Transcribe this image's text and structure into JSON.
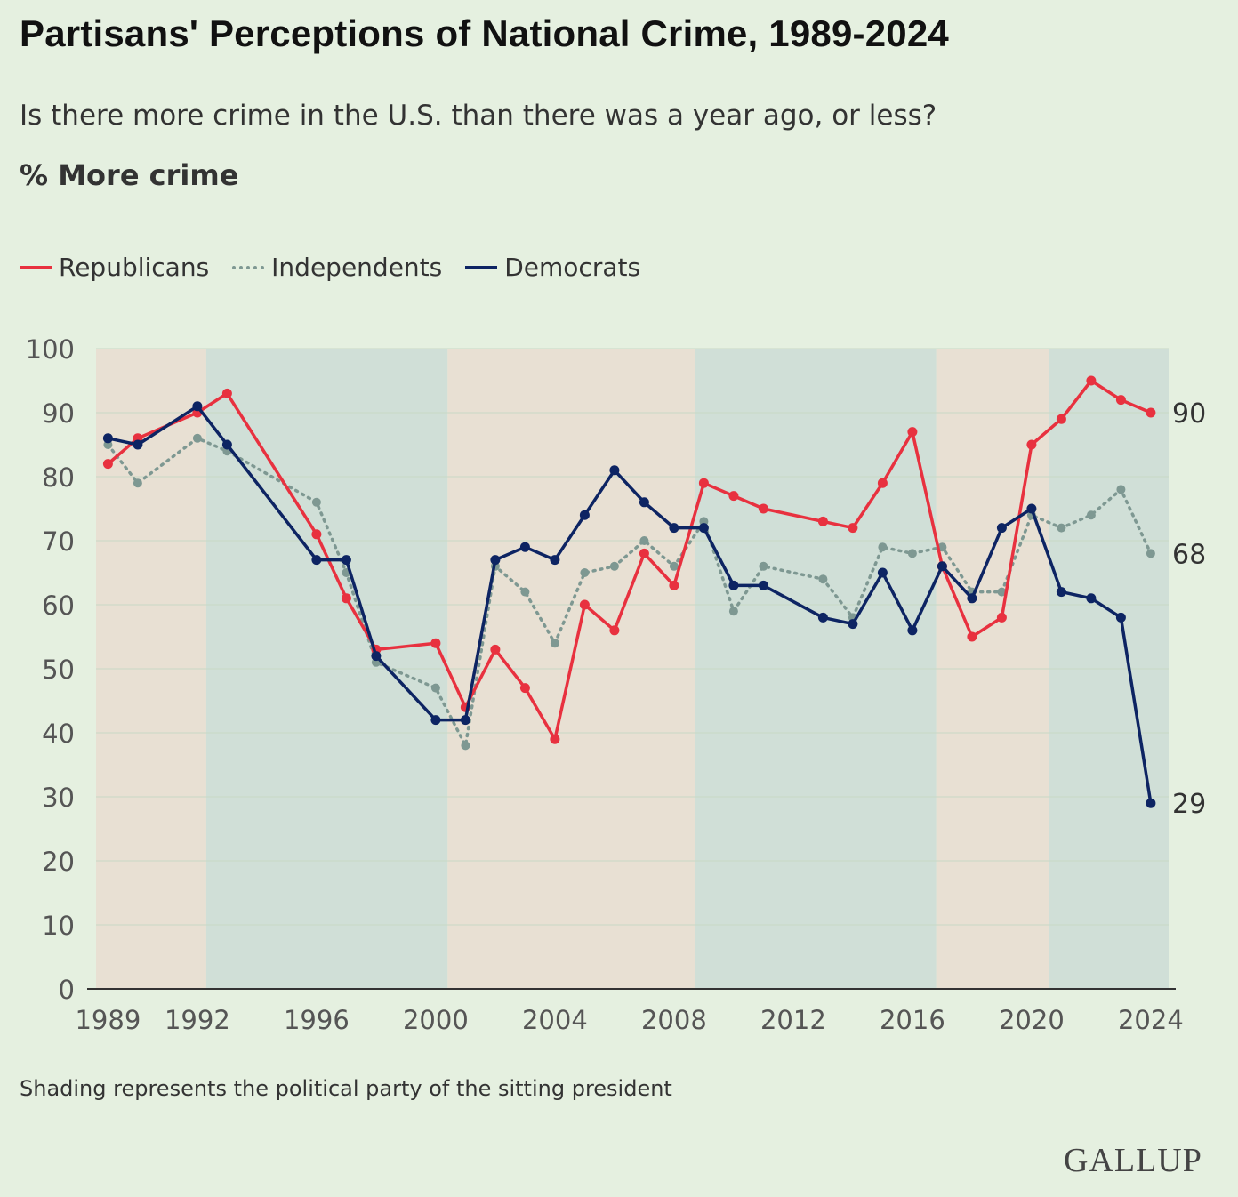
{
  "title": "Partisans' Perceptions of National Crime, 1989-2024",
  "subtitle": "Is there more crime in the U.S. than there was a year ago, or less?",
  "measure": "% More crime",
  "note": "Shading represents the political party of the sitting president",
  "logo": "GALLUP",
  "colors": {
    "republican": "#e8313f",
    "independent": "#7e9892",
    "democrat": "#0d2463",
    "rep_shade": "#e8e0d3",
    "dem_shade": "#d0dfd7",
    "background": "#e5f0e0"
  },
  "chart_data": {
    "type": "line",
    "ylim": [
      0,
      100
    ],
    "xlim": [
      1988.6,
      2024.6
    ],
    "yticks": [
      0,
      10,
      20,
      30,
      40,
      50,
      60,
      70,
      80,
      90,
      100
    ],
    "xticks": [
      1989,
      1992,
      1996,
      2000,
      2004,
      2008,
      2012,
      2016,
      2020,
      2024
    ],
    "legend": "top-left",
    "grid": true,
    "shading": [
      {
        "party": "Republican",
        "start": 1988.6,
        "end": 1992.3
      },
      {
        "party": "Democratic",
        "start": 1992.3,
        "end": 2000.4
      },
      {
        "party": "Republican",
        "start": 2000.4,
        "end": 2008.7
      },
      {
        "party": "Democratic",
        "start": 2008.7,
        "end": 2016.8
      },
      {
        "party": "Republican",
        "start": 2016.8,
        "end": 2020.6
      },
      {
        "party": "Democratic",
        "start": 2020.6,
        "end": 2024.6
      }
    ],
    "series": [
      {
        "name": "Republicans",
        "style": "solid",
        "end_label": "90",
        "x": [
          1989,
          1990,
          1992,
          1993,
          1996,
          1997,
          1998,
          2000,
          2001,
          2002,
          2003,
          2004,
          2005,
          2006,
          2007,
          2008,
          2009,
          2010,
          2011,
          2013,
          2014,
          2015,
          2016,
          2017,
          2018,
          2019,
          2020,
          2021,
          2022,
          2023,
          2024
        ],
        "values": [
          82,
          86,
          90,
          93,
          71,
          61,
          53,
          54,
          44,
          53,
          47,
          39,
          60,
          56,
          68,
          63,
          79,
          77,
          75,
          73,
          72,
          79,
          87,
          66,
          55,
          58,
          85,
          89,
          95,
          92,
          90
        ]
      },
      {
        "name": "Independents",
        "style": "dotted",
        "end_label": "68",
        "x": [
          1989,
          1990,
          1992,
          1993,
          1996,
          1997,
          1998,
          2000,
          2001,
          2002,
          2003,
          2004,
          2005,
          2006,
          2007,
          2008,
          2009,
          2010,
          2011,
          2013,
          2014,
          2015,
          2016,
          2017,
          2018,
          2019,
          2020,
          2021,
          2022,
          2023,
          2024
        ],
        "values": [
          85,
          79,
          86,
          84,
          76,
          65,
          51,
          47,
          38,
          66,
          62,
          54,
          65,
          66,
          70,
          66,
          73,
          59,
          66,
          64,
          58,
          69,
          68,
          69,
          62,
          62,
          74,
          72,
          74,
          78,
          68
        ]
      },
      {
        "name": "Democrats",
        "style": "solid",
        "end_label": "29",
        "x": [
          1989,
          1990,
          1992,
          1993,
          1996,
          1997,
          1998,
          2000,
          2001,
          2002,
          2003,
          2004,
          2005,
          2006,
          2007,
          2008,
          2009,
          2010,
          2011,
          2013,
          2014,
          2015,
          2016,
          2017,
          2018,
          2019,
          2020,
          2021,
          2022,
          2023,
          2024
        ],
        "values": [
          86,
          85,
          91,
          85,
          67,
          67,
          52,
          42,
          42,
          67,
          69,
          67,
          74,
          81,
          76,
          72,
          72,
          63,
          63,
          58,
          57,
          65,
          56,
          66,
          61,
          72,
          75,
          62,
          61,
          58,
          29
        ]
      }
    ]
  }
}
